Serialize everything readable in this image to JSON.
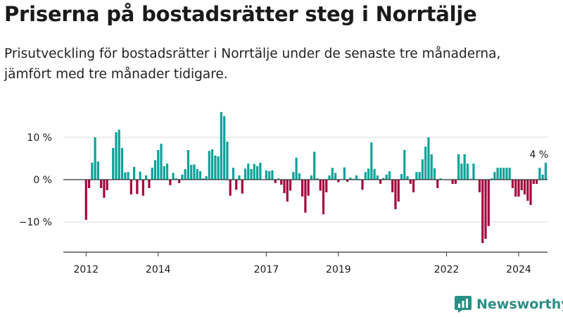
{
  "title": "Priserna på bostadsrätter steg i Norrtälje",
  "subtitle": "Prisutveckling för bostadsrätter i Norrtälje under de senaste tre månaderna, jämfört med tre månader tidigare.",
  "brand": {
    "name": "Newsworthy",
    "icon": "bar-chart-logo-icon"
  },
  "colors": {
    "positive": "#0aa39a",
    "negative": "#a3063f",
    "grid": "#dddddd",
    "zero_line": "#333333",
    "axis": "#333333"
  },
  "chart_data": {
    "type": "bar",
    "title": "",
    "xlabel": "",
    "ylabel": "",
    "start": "2012-01",
    "frequency": "monthly",
    "ylim": [
      -17,
      17
    ],
    "yticks": [
      -10,
      0,
      10
    ],
    "ytick_labels": [
      "−10 %",
      "0 %",
      "10 %"
    ],
    "xtick_labels": [
      "2012",
      "2014",
      "2017",
      "2019",
      "2022",
      "2024"
    ],
    "grid": true,
    "annotation": {
      "text": "4 %",
      "at": "2024-08"
    },
    "values": [
      -9.5,
      -2,
      4,
      10,
      4.3,
      -2,
      -4.3,
      -2.5,
      0,
      7.5,
      11.2,
      11.8,
      7.5,
      1.7,
      1.8,
      -3.5,
      3,
      -3.4,
      1.9,
      -3.8,
      1,
      -2,
      2.8,
      4.6,
      7,
      8.5,
      3.2,
      3.8,
      -1.3,
      1.6,
      0.3,
      -0.8,
      1.2,
      2.5,
      7,
      3.5,
      3.6,
      2.5,
      2,
      0.3,
      0.8,
      6.8,
      7.2,
      5.7,
      5.5,
      16,
      15,
      9,
      -3.8,
      2.8,
      -2.4,
      1,
      -3.3,
      2.6,
      3.8,
      2.5,
      3.7,
      3.2,
      4,
      0,
      2.2,
      2,
      2.2,
      -0.8,
      0.3,
      -1.2,
      -3.2,
      -5.2,
      -2.6,
      1.8,
      5.2,
      1.5,
      -4,
      -7.8,
      -3.8,
      1,
      6.6,
      0.3,
      -2.6,
      -8.2,
      -3,
      1,
      2.8,
      1.6,
      -0.6,
      0.1,
      2.9,
      -0.5,
      0.5,
      0.2,
      1,
      0.2,
      -2.4,
      1.8,
      2.6,
      8.8,
      2.5,
      1,
      -1,
      0.4,
      1.2,
      2,
      -3,
      -7,
      -5.2,
      1.3,
      7,
      0.8,
      -1,
      -3,
      1.8,
      1.8,
      4.8,
      7.8,
      10,
      6,
      2.7,
      -2,
      0.3,
      0.1,
      0.1,
      0.1,
      -1,
      -1,
      6,
      3.8,
      6,
      3.8,
      0.2,
      3.8,
      0.1,
      -3,
      -15,
      -14,
      -11,
      0.3,
      1.8,
      2.8,
      2.8,
      2.8,
      2.8,
      2.8,
      -2,
      -4,
      -4,
      -2.5,
      -3.5,
      -5,
      -6,
      -1,
      -1,
      2.8,
      1.2,
      4
    ]
  }
}
